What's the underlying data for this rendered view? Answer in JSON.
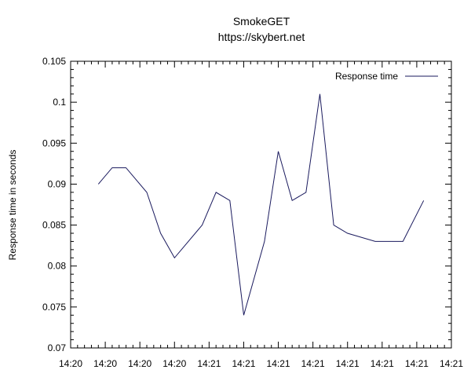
{
  "chart_data": {
    "type": "line",
    "title": "SmokeGET",
    "subtitle": "https://skybert.net",
    "xlabel": "",
    "ylabel": "Response time in seconds",
    "ylim": [
      0.07,
      0.105
    ],
    "yticks": [
      "0.07",
      "0.075",
      "0.08",
      "0.085",
      "0.09",
      "0.095",
      "0.1",
      "0.105"
    ],
    "xticks": [
      "14:20",
      "14:20",
      "14:20",
      "14:20",
      "14:21",
      "14:21",
      "14:21",
      "14:21",
      "14:21",
      "14:21",
      "14:21",
      "14:21"
    ],
    "grid": false,
    "legend_position": "top-right",
    "line_color": "#1a1a5e",
    "series": [
      {
        "name": "Response time",
        "x": [
          0.8,
          1.2,
          1.6,
          2.2,
          2.6,
          3.0,
          3.8,
          4.2,
          4.6,
          5.0,
          5.6,
          6.0,
          6.4,
          6.8,
          7.2,
          7.6,
          8.0,
          8.8,
          9.6,
          10.2
        ],
        "values": [
          0.09,
          0.092,
          0.092,
          0.089,
          0.084,
          0.081,
          0.085,
          0.089,
          0.088,
          0.074,
          0.083,
          0.094,
          0.088,
          0.089,
          0.101,
          0.085,
          0.084,
          0.083,
          0.083,
          0.088
        ]
      }
    ]
  }
}
